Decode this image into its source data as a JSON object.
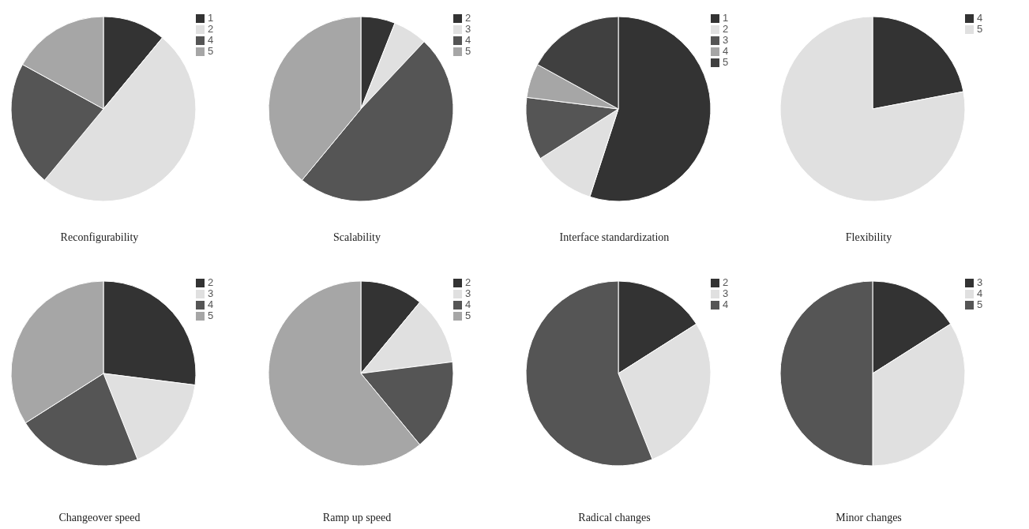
{
  "chart_data": [
    {
      "type": "pie",
      "title": "Reconfigurability",
      "categories": [
        "1",
        "2",
        "4",
        "5"
      ],
      "values": [
        11,
        50,
        22,
        17
      ],
      "colors": [
        "#333333",
        "#e0e0e0",
        "#555555",
        "#a6a6a6"
      ],
      "legend": "top right"
    },
    {
      "type": "pie",
      "title": "Scalability",
      "categories": [
        "2",
        "3",
        "4",
        "5"
      ],
      "values": [
        6,
        6,
        49,
        39
      ],
      "colors": [
        "#333333",
        "#e0e0e0",
        "#555555",
        "#a6a6a6"
      ],
      "legend": "top right"
    },
    {
      "type": "pie",
      "title": "Interface standardization",
      "categories": [
        "1",
        "2",
        "3",
        "4",
        "5"
      ],
      "values": [
        55,
        11,
        11,
        6,
        17
      ],
      "colors": [
        "#333333",
        "#e0e0e0",
        "#555555",
        "#a6a6a6",
        "#404040"
      ],
      "legend": "top right"
    },
    {
      "type": "pie",
      "title": "Flexibility",
      "categories": [
        "4",
        "5"
      ],
      "values": [
        22,
        78
      ],
      "colors": [
        "#333333",
        "#e0e0e0"
      ],
      "legend": "top right"
    },
    {
      "type": "pie",
      "title": "Changeover speed",
      "categories": [
        "2",
        "3",
        "4",
        "5"
      ],
      "values": [
        27,
        17,
        22,
        34
      ],
      "colors": [
        "#333333",
        "#e0e0e0",
        "#555555",
        "#a6a6a6"
      ],
      "legend": "top right"
    },
    {
      "type": "pie",
      "title": "Ramp up speed",
      "categories": [
        "2",
        "3",
        "4",
        "5"
      ],
      "values": [
        11,
        12,
        16,
        61
      ],
      "colors": [
        "#333333",
        "#e0e0e0",
        "#555555",
        "#a6a6a6"
      ],
      "legend": "top right"
    },
    {
      "type": "pie",
      "title": "Radical changes",
      "categories": [
        "2",
        "3",
        "4"
      ],
      "values": [
        16,
        28,
        56
      ],
      "colors": [
        "#333333",
        "#e0e0e0",
        "#555555"
      ],
      "legend": "top right"
    },
    {
      "type": "pie",
      "title": "Minor changes",
      "categories": [
        "3",
        "4",
        "5"
      ],
      "values": [
        16,
        34,
        50
      ],
      "colors": [
        "#333333",
        "#e0e0e0",
        "#555555"
      ],
      "legend": "top right"
    }
  ]
}
